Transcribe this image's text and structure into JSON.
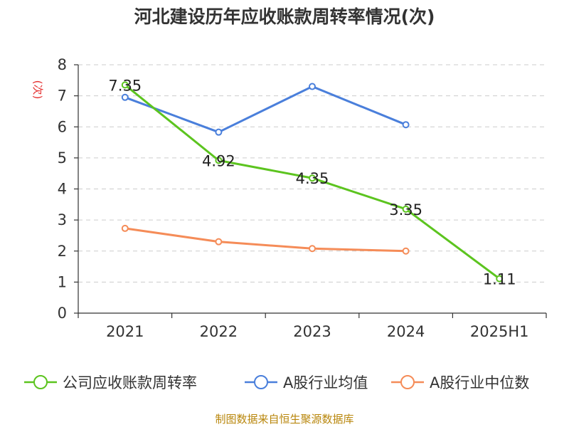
{
  "title": "河北建设历年应收账款周转率情况(次)",
  "source": "制图数据来自恒生聚源数据库",
  "colors": {
    "receivable_turnover": "#5cc41f",
    "industry_average": "#4a7fdb",
    "industry_median": "#f58c58",
    "unit": "#e53030",
    "axis": "#333333",
    "grid": "#cccccc"
  },
  "chart_data": {
    "type": "line",
    "title": "河北建设历年应收账款周转率情况(次)",
    "ylabel": "(次)",
    "xlabel": "",
    "categories": [
      "2021",
      "2022",
      "2023",
      "2024",
      "2025H1"
    ],
    "ylim": [
      0,
      8
    ],
    "yticks": [
      "0",
      "1",
      "2",
      "3",
      "4",
      "5",
      "6",
      "7",
      "8"
    ],
    "grid": true,
    "legend_position": "bottom",
    "series": [
      {
        "name": "公司应收账款周转率",
        "color_key": "receivable_turnover",
        "values": [
          7.35,
          4.92,
          4.35,
          3.35,
          1.11
        ],
        "labels": [
          "7.35",
          "4.92",
          "4.35",
          "3.35",
          "1.11"
        ]
      },
      {
        "name": "A股行业均值",
        "color_key": "industry_average",
        "values": [
          6.95,
          5.83,
          7.3,
          6.07,
          null
        ]
      },
      {
        "name": "A股行业中位数",
        "color_key": "industry_median",
        "values": [
          2.73,
          2.3,
          2.08,
          2.0,
          null
        ]
      }
    ]
  }
}
